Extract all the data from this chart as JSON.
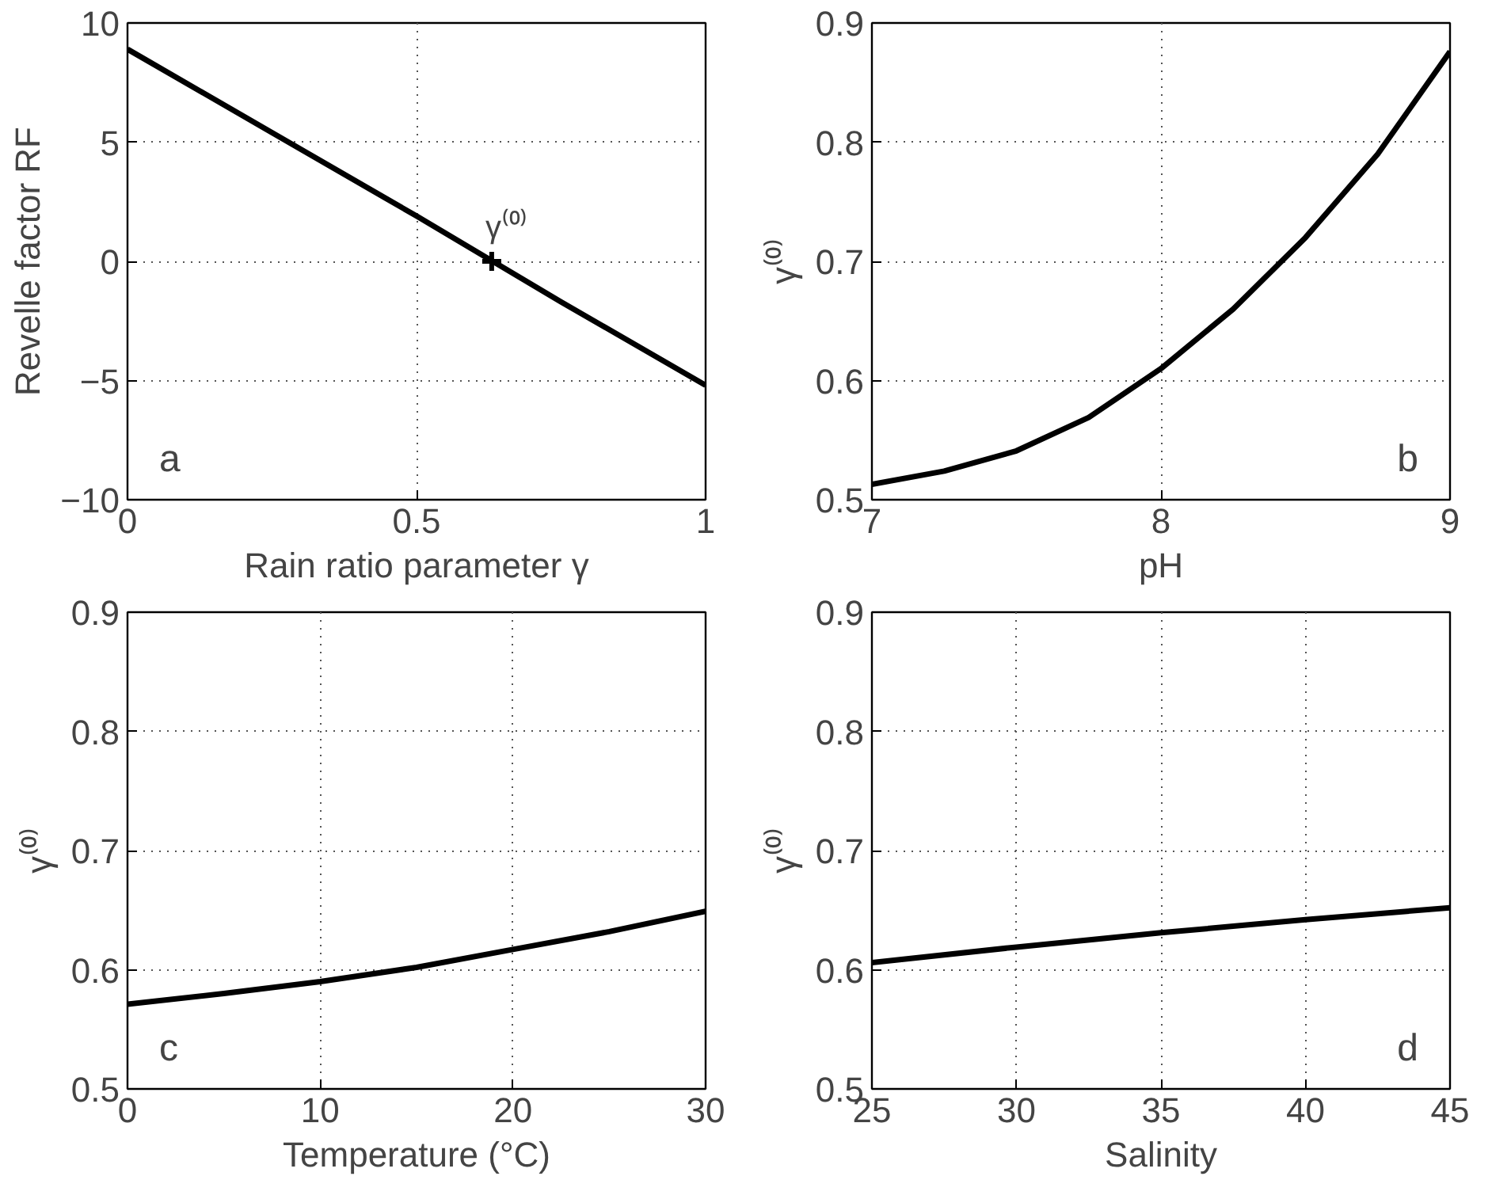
{
  "chart_data": [
    {
      "type": "line",
      "xlabel": "Rain ratio parameter γ",
      "ylabel": "Revelle factor RF",
      "xlim": [
        0,
        1
      ],
      "ylim": [
        -10,
        10
      ],
      "xticks": [
        0,
        0.5,
        1
      ],
      "yticks": [
        10,
        5,
        0,
        -5,
        -10
      ],
      "grid": true,
      "line_style": "solid",
      "marker": "none",
      "series": [
        {
          "color": "#000000",
          "x": [
            0,
            0.25,
            0.5,
            0.75,
            1
          ],
          "values": [
            8.9,
            5.4,
            1.9,
            -1.7,
            -5.2
          ]
        },
        {
          "type": "scatter",
          "marker": "cross",
          "color": "#000000",
          "x": [
            0.63
          ],
          "values": [
            0
          ]
        }
      ],
      "annotations": [
        {
          "text": "γ⁽⁰⁾",
          "x": 0.63,
          "y": 0
        },
        "a"
      ]
    },
    {
      "type": "line",
      "xlabel": "pH",
      "ylabel": "γ⁽⁰⁾",
      "xlim": [
        7,
        9
      ],
      "ylim": [
        0.5,
        0.9
      ],
      "xticks": [
        7,
        8,
        9
      ],
      "yticks": [
        0.5,
        0.6,
        0.7,
        0.8,
        0.9
      ],
      "grid": true,
      "line_style": "solid",
      "marker": "none",
      "series": [
        {
          "color": "#000000",
          "x": [
            7,
            7.25,
            7.5,
            7.75,
            8,
            8.25,
            8.5,
            8.75,
            9
          ],
          "values": [
            0.513,
            0.524,
            0.541,
            0.569,
            0.61,
            0.66,
            0.72,
            0.79,
            0.876
          ]
        }
      ],
      "annotations": [
        "b"
      ]
    },
    {
      "type": "line",
      "xlabel": "Temperature (°C)",
      "ylabel": "γ⁽⁰⁾",
      "xlim": [
        0,
        30
      ],
      "ylim": [
        0.5,
        0.9
      ],
      "xticks": [
        0,
        10,
        20,
        30
      ],
      "yticks": [
        0.5,
        0.6,
        0.7,
        0.8,
        0.9
      ],
      "grid": true,
      "line_style": "solid",
      "marker": "none",
      "series": [
        {
          "color": "#000000",
          "x": [
            0,
            5,
            10,
            15,
            20,
            25,
            30
          ],
          "values": [
            0.571,
            0.58,
            0.59,
            0.602,
            0.617,
            0.632,
            0.649
          ]
        }
      ],
      "annotations": [
        "c"
      ]
    },
    {
      "type": "line",
      "xlabel": "Salinity",
      "ylabel": "γ⁽⁰⁾",
      "xlim": [
        25,
        45
      ],
      "ylim": [
        0.5,
        0.9
      ],
      "xticks": [
        25,
        30,
        35,
        40,
        45
      ],
      "yticks": [
        0.5,
        0.6,
        0.7,
        0.8,
        0.9
      ],
      "grid": true,
      "line_style": "solid",
      "marker": "none",
      "series": [
        {
          "color": "#000000",
          "x": [
            25,
            30,
            35,
            40,
            45
          ],
          "values": [
            0.606,
            0.619,
            0.631,
            0.642,
            0.652
          ]
        }
      ],
      "annotations": [
        "d"
      ]
    }
  ]
}
